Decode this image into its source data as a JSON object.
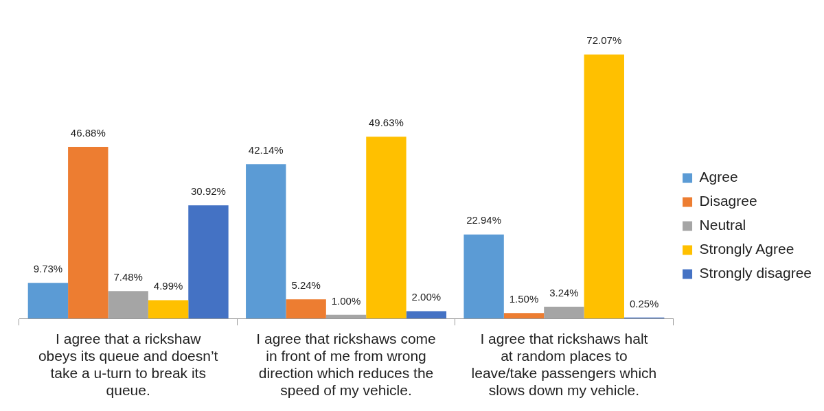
{
  "chart_data": {
    "type": "bar",
    "categories": [
      "I agree that a rickshaw obeys its queue and doesn’t take a u-turn to break its queue.",
      "I agree that rickshaws come in front of me from wrong direction which reduces the speed of my vehicle.",
      "I agree that rickshaws halt at random places to leave/take passengers which slows down my vehicle."
    ],
    "series": [
      {
        "name": "Agree",
        "color": "#5b9bd5",
        "values": [
          9.73,
          42.14,
          22.94
        ],
        "value_labels": [
          "9.73%",
          "42.14%",
          "22.94%"
        ]
      },
      {
        "name": "Disagree",
        "color": "#ed7d31",
        "values": [
          46.88,
          5.24,
          1.5
        ],
        "value_labels": [
          "46.88%",
          "5.24%",
          "1.50%"
        ]
      },
      {
        "name": "Neutral",
        "color": "#a5a5a5",
        "values": [
          7.48,
          1.0,
          3.24
        ],
        "value_labels": [
          "7.48%",
          "1.00%",
          "3.24%"
        ]
      },
      {
        "name": "Strongly Agree",
        "color": "#ffc000",
        "values": [
          4.99,
          49.63,
          72.07
        ],
        "value_labels": [
          "4.99%",
          "49.63%",
          "72.07%"
        ]
      },
      {
        "name": "Strongly disagree",
        "color": "#4472c4",
        "values": [
          30.92,
          2.0,
          0.25
        ],
        "value_labels": [
          "30.92%",
          "2.00%",
          "0.25%"
        ]
      }
    ],
    "legend": "right",
    "grid": false
  }
}
